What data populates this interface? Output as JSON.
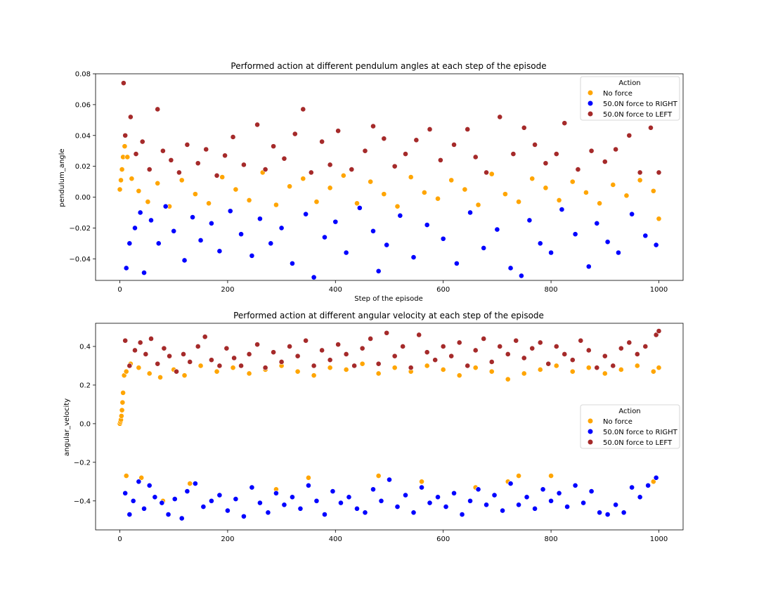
{
  "colors": {
    "no_force": "#FFA500",
    "right_force": "#0000FF",
    "left_force": "#A52A2A"
  },
  "chart_data": [
    {
      "type": "scatter",
      "title": "Performed action at different pendulum angles at each step of the episode",
      "xlabel": "Step of the episode",
      "ylabel": "pendulum_angle",
      "xlim": [
        -45,
        1045
      ],
      "ylim": [
        -0.054,
        0.08
      ],
      "xticks": [
        0,
        200,
        400,
        600,
        800,
        1000
      ],
      "yticks": [
        -0.04,
        -0.02,
        0.0,
        0.02,
        0.04,
        0.06,
        0.08
      ],
      "ytick_labels": [
        "−0.04",
        "−0.02",
        "0.00",
        "0.02",
        "0.04",
        "0.06",
        "0.08"
      ],
      "grid": false,
      "legend": {
        "title": "Action",
        "placement": "upper right",
        "entries": [
          "No force",
          "50.0N force to RIGHT",
          "50.0N force to LEFT"
        ]
      },
      "series": [
        {
          "name": "No force",
          "color_key": "no_force",
          "x": [
            0,
            2,
            4,
            6,
            9,
            14,
            22,
            35,
            52,
            70,
            92,
            115,
            140,
            165,
            190,
            215,
            240,
            265,
            290,
            315,
            340,
            365,
            390,
            415,
            440,
            465,
            490,
            515,
            540,
            565,
            590,
            615,
            640,
            665,
            690,
            715,
            740,
            765,
            790,
            815,
            840,
            865,
            890,
            915,
            940,
            965,
            990,
            1000
          ],
          "y": [
            0.005,
            0.011,
            0.018,
            0.026,
            0.033,
            0.026,
            0.012,
            0.004,
            -0.003,
            0.009,
            -0.006,
            0.011,
            0.002,
            -0.004,
            0.013,
            0.005,
            -0.002,
            0.016,
            -0.005,
            0.007,
            0.012,
            -0.003,
            0.006,
            0.014,
            -0.004,
            0.01,
            0.002,
            -0.006,
            0.013,
            0.003,
            -0.001,
            0.011,
            0.005,
            -0.005,
            0.015,
            0.002,
            -0.003,
            0.012,
            0.006,
            -0.002,
            0.01,
            0.003,
            -0.004,
            0.008,
            0.001,
            0.011,
            0.004,
            -0.014
          ]
        },
        {
          "name": "50.0N force to RIGHT",
          "color_key": "right_force",
          "x": [
            12,
            18,
            28,
            38,
            45,
            58,
            72,
            85,
            100,
            120,
            135,
            150,
            170,
            185,
            205,
            225,
            245,
            260,
            280,
            300,
            320,
            345,
            360,
            380,
            400,
            420,
            445,
            470,
            480,
            495,
            520,
            545,
            570,
            600,
            625,
            650,
            675,
            700,
            725,
            745,
            760,
            780,
            800,
            820,
            845,
            870,
            885,
            905,
            925,
            950,
            975,
            995
          ],
          "y": [
            -0.046,
            -0.03,
            -0.02,
            -0.01,
            -0.049,
            -0.015,
            -0.03,
            -0.006,
            -0.022,
            -0.041,
            -0.013,
            -0.028,
            -0.017,
            -0.035,
            -0.009,
            -0.024,
            -0.038,
            -0.014,
            -0.03,
            -0.02,
            -0.043,
            -0.011,
            -0.052,
            -0.026,
            -0.016,
            -0.036,
            -0.007,
            -0.022,
            -0.048,
            -0.031,
            -0.012,
            -0.039,
            -0.018,
            -0.027,
            -0.043,
            -0.01,
            -0.033,
            -0.021,
            -0.046,
            -0.051,
            -0.015,
            -0.03,
            -0.036,
            -0.008,
            -0.024,
            -0.045,
            -0.017,
            -0.029,
            -0.036,
            -0.011,
            -0.025,
            -0.031
          ]
        },
        {
          "name": "50.0N force to LEFT",
          "color_key": "left_force",
          "x": [
            7,
            10,
            20,
            30,
            42,
            55,
            70,
            80,
            95,
            110,
            125,
            145,
            160,
            180,
            195,
            210,
            230,
            255,
            270,
            285,
            305,
            325,
            340,
            355,
            375,
            390,
            405,
            430,
            455,
            470,
            490,
            510,
            530,
            550,
            575,
            595,
            620,
            645,
            660,
            680,
            705,
            730,
            750,
            770,
            790,
            810,
            825,
            850,
            875,
            900,
            920,
            945,
            965,
            985,
            1000
          ],
          "y": [
            0.074,
            0.04,
            0.052,
            0.028,
            0.036,
            0.018,
            0.057,
            0.03,
            0.024,
            0.016,
            0.034,
            0.022,
            0.031,
            0.014,
            0.027,
            0.039,
            0.021,
            0.047,
            0.018,
            0.033,
            0.025,
            0.041,
            0.057,
            0.016,
            0.036,
            0.021,
            0.043,
            0.018,
            0.03,
            0.046,
            0.038,
            0.02,
            0.028,
            0.037,
            0.044,
            0.024,
            0.034,
            0.044,
            0.026,
            0.016,
            0.052,
            0.028,
            0.045,
            0.034,
            0.022,
            0.028,
            0.048,
            0.018,
            0.03,
            0.023,
            0.031,
            0.04,
            0.016,
            0.045,
            0.016
          ]
        }
      ]
    },
    {
      "type": "scatter",
      "title": "Performed action at different angular velocity at each step of the episode",
      "xlabel": "",
      "ylabel": "angular_velocity",
      "xlim": [
        -45,
        1045
      ],
      "ylim": [
        -0.55,
        0.52
      ],
      "xticks": [
        0,
        200,
        400,
        600,
        800,
        1000
      ],
      "yticks": [
        -0.4,
        -0.2,
        0.0,
        0.2,
        0.4
      ],
      "ytick_labels": [
        "−0.4",
        "−0.2",
        "0.0",
        "0.2",
        "0.4"
      ],
      "grid": false,
      "legend": {
        "title": "Action",
        "placement": "center right",
        "entries": [
          "No force",
          "50.0N force to RIGHT",
          "50.0N force to LEFT"
        ]
      },
      "series": [
        {
          "name": "No force",
          "color_key": "no_force",
          "x": [
            0,
            1,
            2,
            3,
            4,
            5,
            6,
            8,
            12,
            20,
            35,
            55,
            75,
            100,
            120,
            150,
            180,
            210,
            240,
            270,
            300,
            330,
            360,
            390,
            420,
            450,
            480,
            510,
            540,
            570,
            600,
            630,
            660,
            690,
            720,
            750,
            780,
            810,
            840,
            870,
            900,
            930,
            960,
            990,
            1000,
            12,
            40,
            80,
            130,
            290,
            350,
            480,
            560,
            660,
            720,
            740,
            800,
            990
          ],
          "y": [
            0.0,
            0.01,
            0.02,
            0.04,
            0.07,
            0.11,
            0.16,
            0.25,
            0.27,
            0.31,
            0.29,
            0.26,
            0.24,
            0.28,
            0.25,
            0.3,
            0.27,
            0.29,
            0.26,
            0.28,
            0.3,
            0.27,
            0.25,
            0.29,
            0.28,
            0.31,
            0.26,
            0.29,
            0.27,
            0.3,
            0.28,
            0.25,
            0.29,
            0.27,
            0.23,
            0.26,
            0.28,
            0.3,
            0.27,
            0.29,
            0.26,
            0.28,
            0.3,
            0.27,
            0.29,
            -0.27,
            -0.28,
            -0.4,
            -0.31,
            -0.34,
            -0.28,
            -0.27,
            -0.3,
            -0.33,
            -0.3,
            -0.27,
            -0.27,
            -0.3
          ]
        },
        {
          "name": "50.0N force to RIGHT",
          "color_key": "right_force",
          "x": [
            10,
            18,
            25,
            35,
            45,
            55,
            65,
            78,
            90,
            102,
            115,
            125,
            140,
            155,
            170,
            185,
            200,
            215,
            230,
            245,
            260,
            275,
            290,
            305,
            320,
            335,
            350,
            365,
            380,
            395,
            410,
            425,
            440,
            455,
            470,
            485,
            500,
            515,
            530,
            545,
            560,
            575,
            590,
            605,
            620,
            635,
            650,
            665,
            680,
            695,
            710,
            725,
            740,
            755,
            770,
            785,
            800,
            815,
            830,
            845,
            860,
            875,
            890,
            905,
            920,
            935,
            950,
            965,
            980,
            995
          ],
          "y": [
            -0.36,
            -0.47,
            -0.4,
            -0.3,
            -0.44,
            -0.32,
            -0.38,
            -0.41,
            -0.47,
            -0.39,
            -0.49,
            -0.35,
            -0.31,
            -0.43,
            -0.4,
            -0.37,
            -0.45,
            -0.39,
            -0.48,
            -0.33,
            -0.41,
            -0.46,
            -0.36,
            -0.42,
            -0.38,
            -0.44,
            -0.32,
            -0.4,
            -0.47,
            -0.35,
            -0.41,
            -0.38,
            -0.44,
            -0.46,
            -0.34,
            -0.4,
            -0.29,
            -0.43,
            -0.37,
            -0.46,
            -0.33,
            -0.41,
            -0.38,
            -0.43,
            -0.36,
            -0.47,
            -0.4,
            -0.34,
            -0.42,
            -0.37,
            -0.45,
            -0.31,
            -0.42,
            -0.38,
            -0.44,
            -0.34,
            -0.4,
            -0.36,
            -0.43,
            -0.32,
            -0.41,
            -0.35,
            -0.46,
            -0.47,
            -0.42,
            -0.46,
            -0.33,
            -0.38,
            -0.32,
            -0.28
          ]
        },
        {
          "name": "50.0N force to LEFT",
          "color_key": "left_force",
          "x": [
            10,
            18,
            28,
            38,
            48,
            58,
            70,
            82,
            92,
            105,
            118,
            130,
            145,
            158,
            170,
            185,
            198,
            212,
            225,
            240,
            255,
            270,
            285,
            300,
            315,
            330,
            345,
            360,
            375,
            390,
            405,
            420,
            435,
            450,
            465,
            480,
            495,
            510,
            525,
            540,
            555,
            570,
            585,
            600,
            615,
            630,
            645,
            660,
            675,
            690,
            705,
            720,
            735,
            750,
            765,
            780,
            795,
            810,
            825,
            840,
            855,
            870,
            885,
            900,
            915,
            930,
            945,
            960,
            975,
            995,
            1000
          ],
          "y": [
            0.43,
            0.3,
            0.38,
            0.42,
            0.36,
            0.44,
            0.31,
            0.39,
            0.35,
            0.27,
            0.36,
            0.32,
            0.4,
            0.45,
            0.33,
            0.3,
            0.39,
            0.34,
            0.3,
            0.36,
            0.41,
            0.29,
            0.37,
            0.32,
            0.4,
            0.35,
            0.43,
            0.3,
            0.38,
            0.33,
            0.41,
            0.36,
            0.3,
            0.39,
            0.44,
            0.31,
            0.47,
            0.35,
            0.4,
            0.29,
            0.46,
            0.37,
            0.33,
            0.4,
            0.35,
            0.42,
            0.3,
            0.38,
            0.44,
            0.32,
            0.4,
            0.36,
            0.43,
            0.34,
            0.39,
            0.42,
            0.31,
            0.4,
            0.36,
            0.33,
            0.43,
            0.38,
            0.29,
            0.35,
            0.3,
            0.39,
            0.42,
            0.36,
            0.4,
            0.46,
            0.48
          ]
        }
      ]
    }
  ]
}
